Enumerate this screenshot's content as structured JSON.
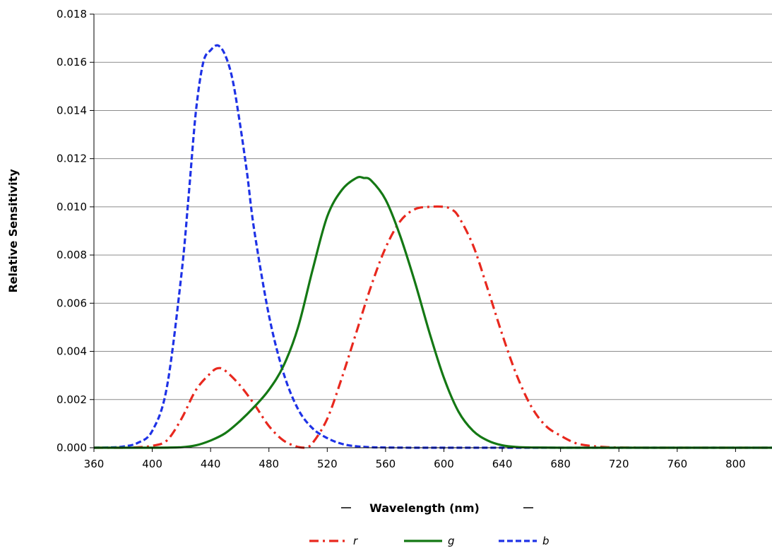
{
  "chart_data": {
    "type": "line",
    "xlabel": "Wavelength (nm)",
    "ylabel": "Relative Sensitivity",
    "xlim": [
      360,
      825
    ],
    "ylim": [
      0,
      0.018
    ],
    "xticks": [
      "360",
      "400",
      "440",
      "480",
      "520",
      "560",
      "600",
      "640",
      "680",
      "720",
      "760",
      "800"
    ],
    "yticks": [
      "0.000",
      "0.002",
      "0.004",
      "0.006",
      "0.008",
      "0.010",
      "0.012",
      "0.014",
      "0.016",
      "0.018"
    ],
    "grid": "horizontal",
    "legend_position": "bottom",
    "series": [
      {
        "name": "r",
        "color": "#e8281e",
        "style": "dash-dot",
        "x": [
          360,
          380,
          390,
          400,
          410,
          420,
          430,
          440,
          445,
          450,
          460,
          470,
          480,
          490,
          500,
          505,
          510,
          520,
          530,
          540,
          550,
          560,
          570,
          580,
          590,
          600,
          605,
          610,
          620,
          630,
          640,
          650,
          660,
          670,
          680,
          690,
          700,
          710,
          720,
          740,
          760,
          800,
          825
        ],
        "values": [
          0.0,
          0.0,
          2e-05,
          8e-05,
          0.0003,
          0.0012,
          0.0024,
          0.0031,
          0.0033,
          0.0032,
          0.0026,
          0.0018,
          0.0009,
          0.0003,
          3e-05,
          0.0,
          0.0002,
          0.0012,
          0.0029,
          0.0048,
          0.0067,
          0.0083,
          0.0094,
          0.0099,
          0.01,
          0.01,
          0.0099,
          0.0096,
          0.0084,
          0.0066,
          0.0047,
          0.003,
          0.0017,
          0.0009,
          0.0005,
          0.0002,
          8e-05,
          3e-05,
          1e-05,
          0.0,
          0.0,
          0.0,
          0.0
        ]
      },
      {
        "name": "g",
        "color": "#147814",
        "style": "solid",
        "x": [
          360,
          400,
          420,
          430,
          440,
          450,
          460,
          470,
          480,
          490,
          500,
          510,
          520,
          530,
          540,
          545,
          550,
          560,
          570,
          580,
          590,
          600,
          610,
          620,
          630,
          640,
          650,
          660,
          680,
          700,
          720,
          760,
          800,
          825
        ],
        "values": [
          0.0,
          0.0,
          2e-05,
          0.0001,
          0.0003,
          0.0006,
          0.0011,
          0.0017,
          0.0024,
          0.0034,
          0.005,
          0.0074,
          0.0096,
          0.0107,
          0.0112,
          0.0112,
          0.0111,
          0.0103,
          0.0088,
          0.0069,
          0.0048,
          0.0029,
          0.0015,
          0.0007,
          0.0003,
          0.0001,
          3e-05,
          1e-05,
          0.0,
          0.0,
          0.0,
          0.0,
          0.0,
          0.0
        ]
      },
      {
        "name": "b",
        "color": "#1e32e6",
        "style": "dashed",
        "x": [
          360,
          370,
          380,
          390,
          400,
          410,
          420,
          425,
          430,
          435,
          440,
          445,
          450,
          455,
          460,
          465,
          470,
          480,
          490,
          500,
          510,
          520,
          530,
          540,
          550,
          560,
          580,
          620,
          700,
          825
        ],
        "values": [
          0.0,
          1e-05,
          5e-05,
          0.0002,
          0.0007,
          0.0025,
          0.0072,
          0.0105,
          0.014,
          0.016,
          0.0165,
          0.0167,
          0.0163,
          0.0153,
          0.0135,
          0.0114,
          0.009,
          0.0055,
          0.0031,
          0.0016,
          0.0008,
          0.0004,
          0.00016,
          6e-05,
          2e-05,
          1e-05,
          0.0,
          0.0,
          0.0,
          0.0
        ]
      }
    ]
  }
}
